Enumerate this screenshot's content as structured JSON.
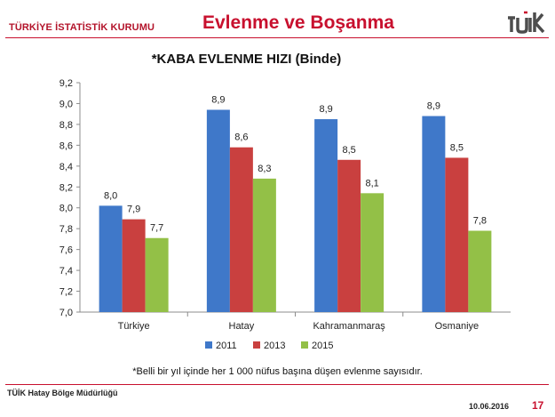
{
  "header": {
    "org": "TÜRKİYE İSTATİSTİK KURUMU",
    "title": "Evlenme ve Boşanma",
    "logo_text": "TÜİK"
  },
  "chart_data": {
    "type": "bar",
    "title": "*KABA EVLENME HIZI (Binde)",
    "categories": [
      "Türkiye",
      "Hatay",
      "Kahramanmaraş",
      "Osmaniye"
    ],
    "series": [
      {
        "name": "2011",
        "color": "#3f78c9",
        "values": [
          8.0,
          8.9,
          8.9,
          8.9
        ],
        "plot_values": [
          8.02,
          8.94,
          8.85,
          8.88
        ]
      },
      {
        "name": "2013",
        "color": "#c9403f",
        "values": [
          7.9,
          8.6,
          8.5,
          8.5
        ],
        "plot_values": [
          7.89,
          8.58,
          8.46,
          8.48
        ]
      },
      {
        "name": "2015",
        "color": "#93c047",
        "values": [
          7.7,
          8.3,
          8.1,
          7.8
        ],
        "plot_values": [
          7.71,
          8.28,
          8.14,
          7.78
        ]
      }
    ],
    "ylim": [
      7.0,
      9.2
    ],
    "yticks": [
      "7,0",
      "7,2",
      "7,4",
      "7,6",
      "7,8",
      "8,0",
      "8,2",
      "8,4",
      "8,6",
      "8,8",
      "9,0",
      "9,2"
    ],
    "grid": false,
    "legend": "bottom"
  },
  "footnote": "*Belli bir yıl içinde her 1 000 nüfus başına düşen evlenme sayısıdır.",
  "footer": {
    "office": "TÜİK Hatay Bölge Müdürlüğü",
    "date": "10.06.2016",
    "page": "17"
  }
}
